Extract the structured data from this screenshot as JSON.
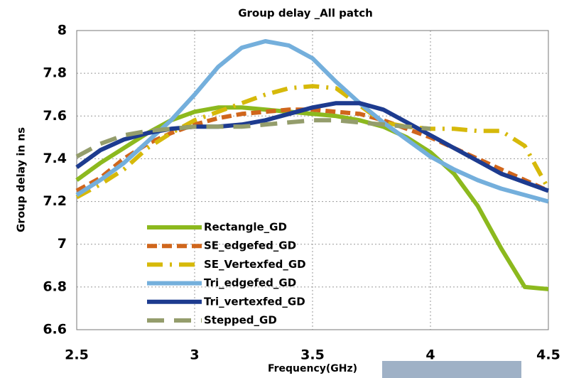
{
  "chart_data": {
    "type": "line",
    "title": "Group delay _All patch",
    "x_label": "Frequency(GHz)",
    "y_label": "Group delay in ns",
    "x": [
      2.5,
      2.6,
      2.7,
      2.8,
      2.9,
      3.0,
      3.1,
      3.2,
      3.3,
      3.4,
      3.5,
      3.6,
      3.7,
      3.8,
      3.9,
      4.0,
      4.1,
      4.2,
      4.3,
      4.4,
      4.5
    ],
    "series": [
      {
        "name": "Rectangle_GD",
        "color": "#8cb91e",
        "dash": "solid",
        "values": [
          7.3,
          7.38,
          7.45,
          7.52,
          7.58,
          7.62,
          7.64,
          7.64,
          7.63,
          7.62,
          7.61,
          7.6,
          7.58,
          7.55,
          7.5,
          7.43,
          7.33,
          7.18,
          6.98,
          6.8,
          6.79
        ]
      },
      {
        "name": "SE_edgefed_GD",
        "color": "#d0661c",
        "dash": "dash",
        "values": [
          7.25,
          7.31,
          7.4,
          7.47,
          7.52,
          7.56,
          7.59,
          7.61,
          7.62,
          7.63,
          7.63,
          7.62,
          7.61,
          7.58,
          7.54,
          7.5,
          7.45,
          7.4,
          7.35,
          7.3,
          7.25
        ]
      },
      {
        "name": "SE_Vertexfed_GD",
        "color": "#d6b90a",
        "dash": "dashdot",
        "values": [
          7.22,
          7.28,
          7.35,
          7.45,
          7.52,
          7.58,
          7.62,
          7.66,
          7.7,
          7.73,
          7.74,
          7.73,
          7.65,
          7.57,
          7.55,
          7.54,
          7.54,
          7.53,
          7.53,
          7.46,
          7.26
        ]
      },
      {
        "name": "Tri_edgefed_GD",
        "color": "#74afdc",
        "dash": "solid",
        "values": [
          7.23,
          7.3,
          7.38,
          7.48,
          7.58,
          7.7,
          7.83,
          7.92,
          7.95,
          7.93,
          7.87,
          7.76,
          7.66,
          7.57,
          7.49,
          7.41,
          7.35,
          7.3,
          7.26,
          7.23,
          7.2
        ]
      },
      {
        "name": "Tri_vertexfed_GD",
        "color": "#1d3b8f",
        "dash": "solid",
        "values": [
          7.36,
          7.44,
          7.49,
          7.52,
          7.54,
          7.55,
          7.55,
          7.56,
          7.58,
          7.61,
          7.64,
          7.66,
          7.66,
          7.63,
          7.57,
          7.51,
          7.45,
          7.39,
          7.33,
          7.29,
          7.25
        ]
      },
      {
        "name": "Stepped_GD",
        "color": "#949d6c",
        "dash": "longdash",
        "values": [
          7.41,
          7.47,
          7.51,
          7.53,
          7.54,
          7.55,
          7.55,
          7.55,
          7.56,
          7.57,
          7.58,
          7.58,
          7.57,
          7.56,
          7.55,
          7.54,
          null,
          null,
          null,
          null,
          null
        ]
      }
    ],
    "xlim": [
      2.5,
      4.5
    ],
    "xticks": [
      2.5,
      3,
      3.5,
      4,
      4.5
    ],
    "ylim": [
      6.6,
      8
    ],
    "yticks": [
      6.6,
      6.8,
      7,
      7.2,
      7.4,
      7.6,
      7.8,
      8
    ],
    "grid": true,
    "legend": "lower left"
  }
}
